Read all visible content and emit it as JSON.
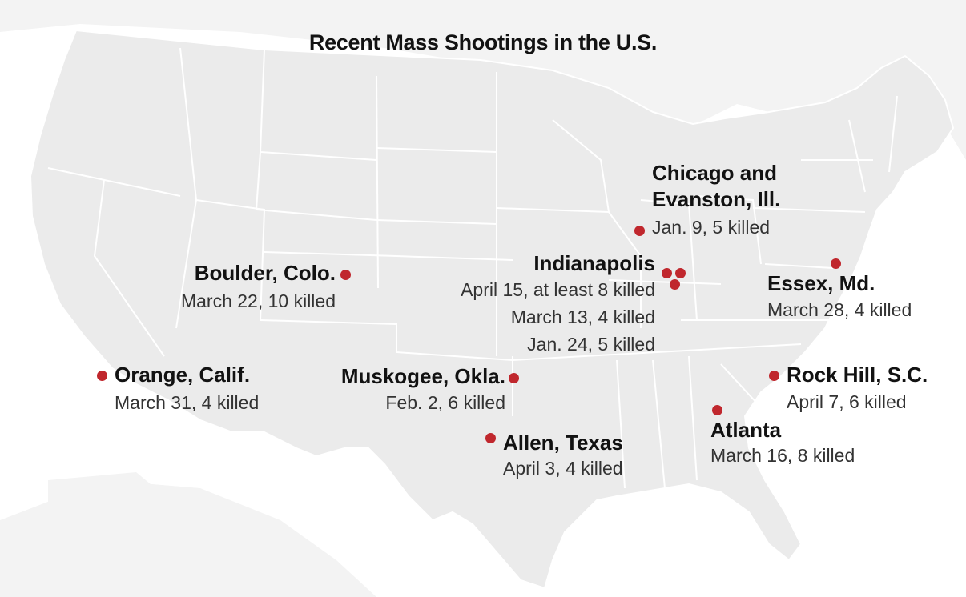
{
  "title": "Recent Mass Shootings in the U.S.",
  "colors": {
    "land": "#ebebeb",
    "border": "#ffffff",
    "marker": "#c0272d",
    "text": "#121212"
  },
  "locations": [
    {
      "id": "chicago",
      "place_line1": "Chicago and",
      "place_line2": "Evanston, Ill.",
      "details": [
        "Jan. 9, 5 killed"
      ]
    },
    {
      "id": "boulder",
      "place": "Boulder, Colo.",
      "details": [
        "March 22, 10 killed"
      ]
    },
    {
      "id": "indianapolis",
      "place": "Indianapolis",
      "details": [
        "April 15, at least 8 killed",
        "March 13, 4 killed",
        "Jan. 24, 5 killed"
      ]
    },
    {
      "id": "essex",
      "place": "Essex, Md.",
      "details": [
        "March 28, 4 killed"
      ]
    },
    {
      "id": "orange",
      "place": "Orange, Calif.",
      "details": [
        "March 31, 4 killed"
      ]
    },
    {
      "id": "muskogee",
      "place": "Muskogee, Okla.",
      "details": [
        "Feb. 2, 6 killed"
      ]
    },
    {
      "id": "rockhill",
      "place": "Rock Hill, S.C.",
      "details": [
        "April 7, 6 killed"
      ]
    },
    {
      "id": "allen",
      "place": "Allen, Texas",
      "details": [
        "April 3, 4 killed"
      ]
    },
    {
      "id": "atlanta",
      "place": "Atlanta",
      "details": [
        "March 16, 8 killed"
      ]
    }
  ]
}
